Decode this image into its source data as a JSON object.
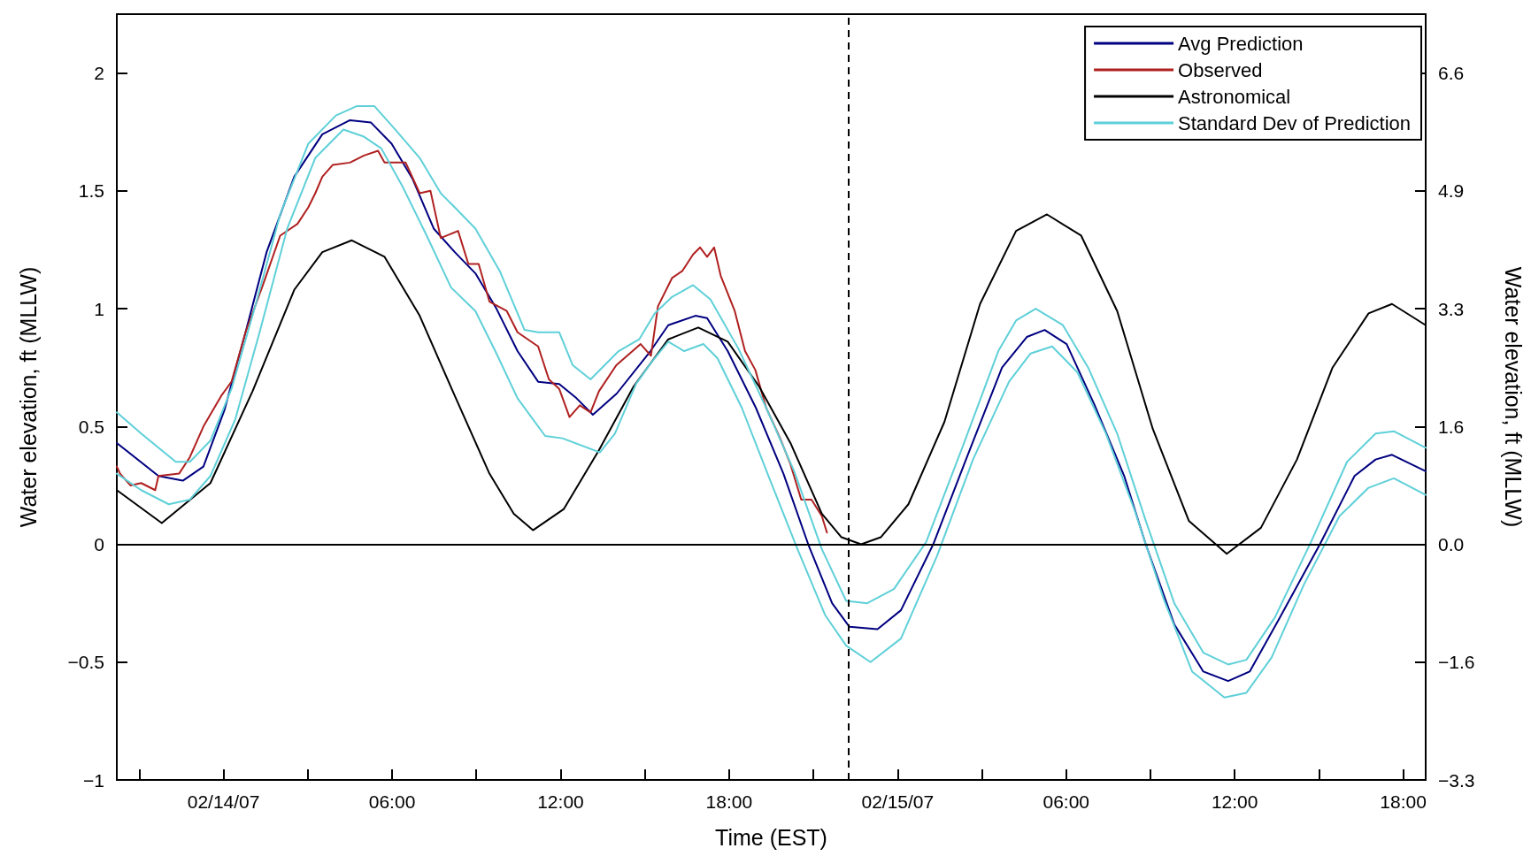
{
  "chart_data": {
    "type": "line",
    "xlabel": "Time (EST)",
    "ylabel": "Water elevation, ft (MLLW)",
    "y2label": "Water elevation, ft (MLLW)",
    "xlim": [
      "--02-13T20:12",
      "--02-15T18:48"
    ],
    "xticks": [
      {
        "value": "--02-13T21:00",
        "label": null
      },
      {
        "value": "--02-14T00:00",
        "label": "02/14/07"
      },
      {
        "value": "--02-14T03:00",
        "label": null
      },
      {
        "value": "--02-14T06:00",
        "label": "06:00"
      },
      {
        "value": "--02-14T09:00",
        "label": null
      },
      {
        "value": "--02-14T12:00",
        "label": "12:00"
      },
      {
        "value": "--02-14T15:00",
        "label": null
      },
      {
        "value": "--02-14T18:00",
        "label": "18:00"
      },
      {
        "value": "--02-14T21:00",
        "label": null
      },
      {
        "value": "--02-15T00:00",
        "label": "02/15/07"
      },
      {
        "value": "--02-15T03:00",
        "label": null
      },
      {
        "value": "--02-15T06:00",
        "label": "06:00"
      },
      {
        "value": "--02-15T09:00",
        "label": null
      },
      {
        "value": "--02-15T12:00",
        "label": "12:00"
      },
      {
        "value": "--02-15T15:00",
        "label": null
      },
      {
        "value": "--02-15T18:00",
        "label": "18:00"
      }
    ],
    "ylim": [
      -1,
      2.25
    ],
    "yticks": [
      {
        "value": -1,
        "label": "−1"
      },
      {
        "value": -0.5,
        "label": "−0.5"
      },
      0,
      0.5,
      1,
      1.5,
      2
    ],
    "y2lim": [
      -3.28,
      7.38
    ],
    "y2ticks": [
      {
        "value": -3.28,
        "label": "−3.3"
      },
      {
        "value": -1.64,
        "label": "−1.6"
      },
      {
        "value": 0,
        "label": "0.0"
      },
      {
        "value": 1.64,
        "label": "1.6"
      },
      {
        "value": 3.28,
        "label": "3.3"
      },
      {
        "value": 4.92,
        "label": "4.9"
      },
      {
        "value": 6.56,
        "label": "6.6"
      }
    ],
    "grid": false,
    "legend": "top right",
    "marker": "none",
    "line_style": "solid",
    "ref_lines": [
      {
        "axis": "y",
        "value": 0,
        "color": "#000000",
        "line_style": "solid"
      },
      {
        "axis": "x",
        "value": "--02-14T22:15",
        "color": "#000000",
        "line_style": "dashed"
      }
    ],
    "series": [
      {
        "name": "Avg Prediction",
        "color": "#000080",
        "x": [
          "--02-13T20:12",
          "--02-13T21:41",
          "--02-13T22:33",
          "--02-13T23:17",
          "--02-14T00:02",
          "--02-14T00:47",
          "--02-14T01:32",
          "--02-14T02:31",
          "--02-14T03:31",
          "--02-14T04:30",
          "--02-14T05:15",
          "--02-14T05:59",
          "--02-14T06:44",
          "--02-14T07:29",
          "--02-14T08:14",
          "--02-14T08:58",
          "--02-14T09:43",
          "--02-14T10:28",
          "--02-14T11:12",
          "--02-14T11:57",
          "--02-14T12:34",
          "--02-14T13:09",
          "--02-14T14:00",
          "--02-14T15:12",
          "--02-14T15:50",
          "--02-14T16:48",
          "--02-14T17:13",
          "--02-14T17:57",
          "--02-14T18:57",
          "--02-14T19:56",
          "--02-14T20:49",
          "--02-14T21:40",
          "--02-14T22:17",
          "--02-14T23:17",
          "--02-15T00:07",
          "--02-15T01:16",
          "--02-15T02:26",
          "--02-15T03:43",
          "--02-15T04:36",
          "--02-15T05:14",
          "--02-15T06:01",
          "--02-15T07:01",
          "--02-15T08:04",
          "--02-15T08:50",
          "--02-15T09:51",
          "--02-15T10:53",
          "--02-15T11:46",
          "--02-15T12:32",
          "--02-15T13:34",
          "--02-15T15:02",
          "--02-15T16:16",
          "--02-15T17:01",
          "--02-15T17:36",
          "--02-15T18:48"
        ],
        "values": [
          0.43,
          0.29,
          0.27,
          0.33,
          0.57,
          0.9,
          1.24,
          1.56,
          1.74,
          1.8,
          1.79,
          1.7,
          1.55,
          1.34,
          1.24,
          1.15,
          1.0,
          0.82,
          0.69,
          0.68,
          0.62,
          0.55,
          0.64,
          0.82,
          0.93,
          0.97,
          0.96,
          0.82,
          0.58,
          0.3,
          0.0,
          -0.25,
          -0.35,
          -0.36,
          -0.28,
          0.0,
          0.36,
          0.75,
          0.88,
          0.91,
          0.85,
          0.59,
          0.29,
          0.0,
          -0.34,
          -0.54,
          -0.58,
          -0.54,
          -0.32,
          0.0,
          0.29,
          0.36,
          0.38,
          0.31
        ]
      },
      {
        "name": "Observed",
        "color": "#b02020",
        "x": [
          "--02-13T20:12",
          "--02-13T20:19",
          "--02-13T20:41",
          "--02-13T21:04",
          "--02-13T21:34",
          "--02-13T21:41",
          "--02-13T22:25",
          "--02-13T22:48",
          "--02-13T23:17",
          "--02-13T23:55",
          "--02-14T00:17",
          "--02-14T00:47",
          "--02-14T01:24",
          "--02-14T02:01",
          "--02-14T02:38",
          "--02-14T03:01",
          "--02-14T03:16",
          "--02-14T03:31",
          "--02-14T03:53",
          "--02-14T04:30",
          "--02-14T05:00",
          "--02-14T05:30",
          "--02-14T05:44",
          "--02-14T06:29",
          "--02-14T06:59",
          "--02-14T07:22",
          "--02-14T07:44",
          "--02-14T08:21",
          "--02-14T08:43",
          "--02-14T09:05",
          "--02-14T09:28",
          "--02-14T10:05",
          "--02-14T10:28",
          "--02-14T11:12",
          "--02-14T11:35",
          "--02-14T11:57",
          "--02-14T12:19",
          "--02-14T12:41",
          "--02-14T13:04",
          "--02-14T13:22",
          "--02-14T13:59",
          "--02-14T14:51",
          "--02-14T15:13",
          "--02-14T15:28",
          "--02-14T15:58",
          "--02-14T16:20",
          "--02-14T16:43",
          "--02-14T16:58",
          "--02-14T17:13",
          "--02-14T17:28",
          "--02-14T17:42",
          "--02-14T18:12",
          "--02-14T18:34",
          "--02-14T18:56",
          "--02-14T19:19",
          "--02-14T19:49",
          "--02-14T20:11",
          "--02-14T20:34",
          "--02-14T20:56",
          "--02-14T21:18",
          "--02-14T21:29"
        ],
        "values": [
          0.33,
          0.3,
          0.25,
          0.26,
          0.23,
          0.29,
          0.3,
          0.37,
          0.5,
          0.63,
          0.69,
          0.9,
          1.1,
          1.31,
          1.36,
          1.43,
          1.49,
          1.56,
          1.61,
          1.62,
          1.65,
          1.67,
          1.62,
          1.62,
          1.49,
          1.5,
          1.3,
          1.33,
          1.19,
          1.19,
          1.03,
          0.99,
          0.9,
          0.84,
          0.7,
          0.66,
          0.54,
          0.59,
          0.56,
          0.65,
          0.76,
          0.85,
          0.8,
          1.01,
          1.13,
          1.16,
          1.23,
          1.26,
          1.22,
          1.26,
          1.14,
          0.99,
          0.82,
          0.74,
          0.58,
          0.45,
          0.34,
          0.19,
          0.19,
          0.12,
          0.05
        ]
      },
      {
        "name": "Astronomical",
        "color": "#000000",
        "x": [
          "--02-13T20:12",
          "--02-13T21:48",
          "--02-13T23:32",
          "--02-14T01:02",
          "--02-14T02:31",
          "--02-14T03:31",
          "--02-14T04:34",
          "--02-14T05:44",
          "--02-14T06:59",
          "--02-14T08:14",
          "--02-14T09:28",
          "--02-14T10:20",
          "--02-14T11:01",
          "--02-14T12:07",
          "--02-14T13:22",
          "--02-14T14:36",
          "--02-14T15:50",
          "--02-14T16:54",
          "--02-14T17:57",
          "--02-14T19:04",
          "--02-14T20:11",
          "--02-14T21:18",
          "--02-14T22:00",
          "--02-14T22:42",
          "--02-14T23:24",
          "--02-15T00:23",
          "--02-15T01:40",
          "--02-15T02:56",
          "--02-15T04:13",
          "--02-15T05:19",
          "--02-15T06:32",
          "--02-15T07:49",
          "--02-15T09:05",
          "--02-15T10:22",
          "--02-15T11:43",
          "--02-15T12:56",
          "--02-15T14:13",
          "--02-15T15:29",
          "--02-15T16:46",
          "--02-15T17:36",
          "--02-15T18:48"
        ],
        "values": [
          0.23,
          0.09,
          0.26,
          0.65,
          1.08,
          1.24,
          1.29,
          1.22,
          0.97,
          0.63,
          0.3,
          0.13,
          0.06,
          0.15,
          0.4,
          0.67,
          0.87,
          0.92,
          0.86,
          0.67,
          0.43,
          0.13,
          0.03,
          0.0,
          0.03,
          0.17,
          0.52,
          1.02,
          1.33,
          1.4,
          1.31,
          0.99,
          0.49,
          0.1,
          -0.04,
          0.07,
          0.36,
          0.75,
          0.98,
          1.02,
          0.93
        ]
      },
      {
        "name": "Standard Dev of Prediction",
        "color": "#5fd0d8",
        "x": [
          "--02-13T20:12",
          "--02-13T21:04",
          "--02-13T22:18",
          "--02-13T22:48",
          "--02-13T23:32",
          "--02-14T00:17",
          "--02-14T01:09",
          "--02-14T02:01",
          "--02-14T03:01",
          "--02-14T04:00",
          "--02-14T04:45",
          "--02-14T05:22",
          "--02-14T06:07",
          "--02-14T06:59",
          "--02-14T07:44",
          "--02-14T08:14",
          "--02-14T08:58",
          "--02-14T09:50",
          "--02-14T10:43",
          "--02-14T11:12",
          "--02-14T11:57",
          "--02-14T12:26",
          "--02-14T13:04",
          "--02-14T14:04",
          "--02-14T14:48",
          "--02-14T15:21",
          "--02-14T15:58",
          "--02-14T16:43",
          "--02-14T17:20",
          "--02-14T18:20",
          "--02-14T19:19",
          "--02-14T20:19",
          "--02-14T21:18",
          "--02-14T22:10",
          "--02-14T22:55",
          "--02-14T23:52",
          "--02-15T01:01",
          "--02-15T02:18",
          "--02-15T03:35",
          "--02-15T04:13",
          "--02-15T04:55",
          "--02-15T05:53",
          "--02-15T06:47",
          "--02-15T07:49",
          "--02-15T08:50",
          "--02-15T09:51",
          "--02-15T10:53",
          "--02-15T11:46",
          "--02-15T12:25",
          "--02-15T13:26",
          "--02-15T14:43",
          "--02-15T16:00",
          "--02-15T17:01",
          "--02-15T17:40",
          "--02-15T18:48"
        ],
        "values": [
          0.56,
          0.47,
          0.35,
          0.35,
          0.44,
          0.66,
          1.02,
          1.4,
          1.7,
          1.82,
          1.86,
          1.86,
          1.76,
          1.64,
          1.49,
          1.43,
          1.34,
          1.16,
          0.91,
          0.9,
          0.9,
          0.76,
          0.7,
          0.82,
          0.87,
          0.98,
          1.05,
          1.1,
          1.04,
          0.83,
          0.58,
          0.31,
          -0.02,
          -0.24,
          -0.25,
          -0.19,
          0.01,
          0.41,
          0.82,
          0.95,
          1.0,
          0.93,
          0.75,
          0.47,
          0.1,
          -0.25,
          -0.46,
          -0.51,
          -0.49,
          -0.31,
          0.01,
          0.35,
          0.47,
          0.48,
          0.41
        ]
      },
      {
        "color": "#5fd0d8",
        "x": [
          "--02-13T20:12",
          "--02-13T21:04",
          "--02-13T22:03",
          "--02-13T22:48",
          "--02-13T23:32",
          "--02-14T00:25",
          "--02-14T01:17",
          "--02-14T02:16",
          "--02-14T03:16",
          "--02-14T04:16",
          "--02-14T05:00",
          "--02-14T05:37",
          "--02-14T06:22",
          "--02-14T07:14",
          "--02-14T08:06",
          "--02-14T08:58",
          "--02-14T09:43",
          "--02-14T10:28",
          "--02-14T11:27",
          "--02-14T12:04",
          "--02-14T13:24",
          "--02-14T13:56",
          "--02-14T14:41",
          "--02-14T15:13",
          "--02-14T15:50",
          "--02-14T16:24",
          "--02-14T17:05",
          "--02-14T17:35",
          "--02-14T18:27",
          "--02-14T19:26",
          "--02-14T20:26",
          "--02-14T21:25",
          "--02-14T22:10",
          "--02-14T23:02",
          "--02-15T00:07",
          "--02-15T01:24",
          "--02-15T02:41",
          "--02-15T03:58",
          "--02-15T04:44",
          "--02-15T05:30",
          "--02-15T06:24",
          "--02-15T07:25",
          "--02-15T08:27",
          "--02-15T09:28",
          "--02-15T10:29",
          "--02-15T11:38",
          "--02-15T12:25",
          "--02-15T13:19",
          "--02-15T14:28",
          "--02-15T15:44",
          "--02-15T16:46",
          "--02-15T17:40",
          "--02-15T18:48"
        ],
        "values": [
          0.3,
          0.23,
          0.17,
          0.19,
          0.29,
          0.53,
          0.9,
          1.34,
          1.64,
          1.76,
          1.73,
          1.68,
          1.52,
          1.31,
          1.09,
          0.99,
          0.81,
          0.62,
          0.46,
          0.45,
          0.39,
          0.47,
          0.68,
          0.77,
          0.86,
          0.82,
          0.85,
          0.79,
          0.58,
          0.28,
          -0.02,
          -0.3,
          -0.43,
          -0.5,
          -0.4,
          -0.05,
          0.36,
          0.69,
          0.81,
          0.84,
          0.73,
          0.47,
          0.14,
          -0.23,
          -0.54,
          -0.65,
          -0.63,
          -0.48,
          -0.17,
          0.12,
          0.24,
          0.28,
          0.21
        ]
      }
    ]
  }
}
